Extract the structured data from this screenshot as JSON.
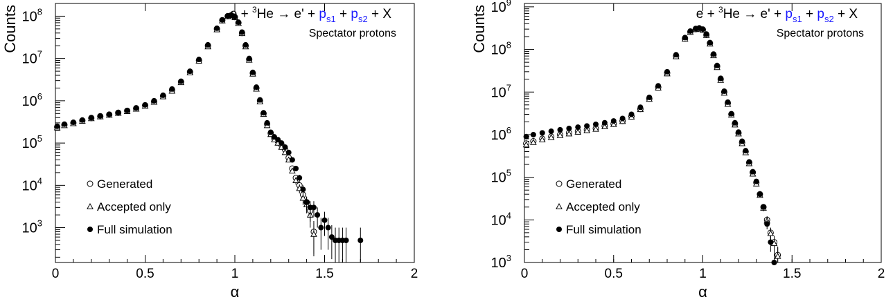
{
  "chart_data": [
    {
      "type": "scatter",
      "log_y": true,
      "xlim": [
        0,
        2
      ],
      "ylim": [
        150,
        200000000
      ],
      "xlabel": "α",
      "ylabel": "Counts",
      "x_ticks": [
        "0",
        "0.5",
        "1",
        "1.5",
        "2"
      ],
      "y_ticks": [
        {
          "base": "10",
          "exp": "3",
          "value": 1000
        },
        {
          "base": "10",
          "exp": "4",
          "value": 10000
        },
        {
          "base": "10",
          "exp": "5",
          "value": 100000
        },
        {
          "base": "10",
          "exp": "6",
          "value": 1000000
        },
        {
          "base": "10",
          "exp": "7",
          "value": 10000000
        },
        {
          "base": "10",
          "exp": "8",
          "value": 100000000
        }
      ],
      "reaction": {
        "pre": "e + ",
        "sup": "3",
        "mid": "He → e' + ",
        "p1": "p",
        "s1": "s1",
        "plus": " + ",
        "p2": "p",
        "s2": "s2",
        "post": " + X"
      },
      "subtitle": "Spectator protons",
      "legend": [
        "Generated",
        "Accepted only",
        "Full simulation"
      ],
      "legend_position": "bottom-left",
      "series": [
        {
          "name": "Generated",
          "marker": "open-circle",
          "x": [
            0.01,
            0.05,
            0.1,
            0.15,
            0.2,
            0.25,
            0.3,
            0.35,
            0.4,
            0.45,
            0.5,
            0.55,
            0.6,
            0.65,
            0.7,
            0.75,
            0.8,
            0.85,
            0.9,
            0.93,
            0.96,
            0.98,
            1.0,
            1.02,
            1.04,
            1.06,
            1.08,
            1.1,
            1.12,
            1.14,
            1.16,
            1.18,
            1.2,
            1.22,
            1.24,
            1.26,
            1.28,
            1.3,
            1.32,
            1.34,
            1.36,
            1.38,
            1.4,
            1.42,
            1.44
          ],
          "y": [
            240000,
            270000,
            300000,
            340000,
            390000,
            430000,
            470000,
            520000,
            580000,
            660000,
            780000,
            960000,
            1300000,
            1800000,
            2800000,
            4800000,
            9000000,
            20000000,
            50000000,
            80000000,
            100000000,
            105000000,
            95000000,
            70000000,
            40000000,
            20000000,
            9500000,
            4500000,
            2000000,
            1000000,
            500000,
            280000,
            170000,
            130000,
            110000,
            90000,
            70000,
            45000,
            25000,
            15000,
            10000,
            6000,
            4000,
            2500,
            800
          ]
        },
        {
          "name": "Accepted only",
          "marker": "open-triangle",
          "x": [
            0.01,
            0.05,
            0.1,
            0.15,
            0.2,
            0.25,
            0.3,
            0.35,
            0.4,
            0.45,
            0.5,
            0.55,
            0.6,
            0.65,
            0.7,
            0.75,
            0.8,
            0.85,
            0.9,
            0.93,
            0.96,
            0.98,
            1.0,
            1.02,
            1.04,
            1.06,
            1.08,
            1.1,
            1.12,
            1.14,
            1.16,
            1.18,
            1.2,
            1.22,
            1.24,
            1.26,
            1.28,
            1.3,
            1.32,
            1.34,
            1.36,
            1.38,
            1.4,
            1.42,
            1.44
          ],
          "y": [
            230000,
            260000,
            290000,
            330000,
            380000,
            420000,
            460000,
            510000,
            560000,
            640000,
            750000,
            930000,
            1250000,
            1700000,
            2700000,
            4600000,
            8700000,
            19000000,
            48000000,
            78000000,
            98000000,
            103000000,
            93000000,
            68000000,
            39000000,
            19000000,
            9200000,
            4300000,
            1900000,
            950000,
            480000,
            260000,
            160000,
            120000,
            100000,
            80000,
            60000,
            40000,
            22000,
            13000,
            8500,
            5000,
            3500,
            2000,
            700
          ]
        },
        {
          "name": "Full simulation",
          "marker": "filled-circle",
          "x": [
            0.01,
            0.05,
            0.1,
            0.15,
            0.2,
            0.25,
            0.3,
            0.35,
            0.4,
            0.45,
            0.5,
            0.55,
            0.6,
            0.65,
            0.7,
            0.75,
            0.8,
            0.85,
            0.9,
            0.93,
            0.96,
            0.98,
            1.0,
            1.02,
            1.04,
            1.06,
            1.08,
            1.1,
            1.12,
            1.14,
            1.16,
            1.18,
            1.2,
            1.22,
            1.24,
            1.26,
            1.28,
            1.3,
            1.32,
            1.34,
            1.36,
            1.38,
            1.4,
            1.42,
            1.44,
            1.46,
            1.48,
            1.5,
            1.52,
            1.54,
            1.56,
            1.58,
            1.6,
            1.62,
            1.7
          ],
          "y": [
            250000,
            280000,
            310000,
            350000,
            400000,
            440000,
            480000,
            530000,
            590000,
            680000,
            800000,
            1000000,
            1350000,
            1900000,
            2900000,
            5000000,
            9500000,
            21000000,
            52000000,
            82000000,
            102000000,
            106000000,
            97000000,
            72000000,
            42000000,
            21000000,
            10000000,
            4700000,
            2100000,
            1050000,
            520000,
            300000,
            180000,
            140000,
            120000,
            100000,
            80000,
            60000,
            40000,
            25000,
            15000,
            8000,
            4000,
            3000,
            3000,
            2000,
            1000,
            1500,
            1000,
            600,
            500,
            500,
            500,
            500,
            500
          ]
        }
      ]
    },
    {
      "type": "scatter",
      "log_y": true,
      "xlim": [
        0,
        2
      ],
      "ylim": [
        1000,
        1200000000
      ],
      "xlabel": "α",
      "ylabel": "Counts",
      "x_ticks": [
        "0",
        "0.5",
        "1",
        "1.5",
        "2"
      ],
      "y_ticks": [
        {
          "base": "10",
          "exp": "3",
          "value": 1000
        },
        {
          "base": "10",
          "exp": "4",
          "value": 10000
        },
        {
          "base": "10",
          "exp": "5",
          "value": 100000
        },
        {
          "base": "10",
          "exp": "6",
          "value": 1000000
        },
        {
          "base": "10",
          "exp": "7",
          "value": 10000000
        },
        {
          "base": "10",
          "exp": "8",
          "value": 100000000
        },
        {
          "base": "10",
          "exp": "9",
          "value": 1000000000
        }
      ],
      "reaction": {
        "pre": "e + ",
        "sup": "3",
        "mid": "He → e' + ",
        "p1": "p",
        "s1": "s1",
        "plus": " + ",
        "p2": "p",
        "s2": "s2",
        "post": " + X"
      },
      "subtitle": "Spectator protons",
      "legend": [
        "Generated",
        "Accepted only",
        "Full simulation"
      ],
      "legend_position": "bottom-left",
      "series": [
        {
          "name": "Generated",
          "marker": "open-circle",
          "x": [
            0.01,
            0.05,
            0.1,
            0.15,
            0.2,
            0.25,
            0.3,
            0.35,
            0.4,
            0.45,
            0.5,
            0.55,
            0.6,
            0.65,
            0.7,
            0.75,
            0.8,
            0.85,
            0.9,
            0.93,
            0.96,
            0.98,
            1.0,
            1.02,
            1.04,
            1.06,
            1.08,
            1.1,
            1.12,
            1.14,
            1.16,
            1.18,
            1.2,
            1.22,
            1.24,
            1.26,
            1.28,
            1.3,
            1.32,
            1.34,
            1.36,
            1.38,
            1.4,
            1.42
          ],
          "y": [
            620000,
            700000,
            800000,
            900000,
            1000000,
            1100000,
            1200000,
            1300000,
            1400000,
            1600000,
            1800000,
            2100000,
            2700000,
            4000000,
            7000000,
            13000000,
            28000000,
            70000000,
            180000000,
            260000000,
            300000000,
            310000000,
            290000000,
            220000000,
            140000000,
            75000000,
            40000000,
            20000000,
            10000000,
            5500000,
            3000000,
            1800000,
            1100000,
            650000,
            400000,
            220000,
            130000,
            75000,
            40000,
            20000,
            10000,
            5000,
            3000,
            1500
          ]
        },
        {
          "name": "Accepted only",
          "marker": "open-triangle",
          "x": [
            0.01,
            0.05,
            0.1,
            0.15,
            0.2,
            0.25,
            0.3,
            0.35,
            0.4,
            0.45,
            0.5,
            0.55,
            0.6,
            0.65,
            0.7,
            0.75,
            0.8,
            0.85,
            0.9,
            0.93,
            0.96,
            0.98,
            1.0,
            1.02,
            1.04,
            1.06,
            1.08,
            1.1,
            1.12,
            1.14,
            1.16,
            1.18,
            1.2,
            1.22,
            1.24,
            1.26,
            1.28,
            1.3,
            1.32,
            1.34,
            1.36,
            1.38,
            1.4,
            1.42,
            1.44
          ],
          "y": [
            580000,
            660000,
            760000,
            860000,
            960000,
            1050000,
            1150000,
            1250000,
            1350000,
            1550000,
            1750000,
            2050000,
            2600000,
            3900000,
            6800000,
            12500000,
            27000000,
            68000000,
            175000000,
            255000000,
            295000000,
            305000000,
            285000000,
            215000000,
            135000000,
            72000000,
            38000000,
            19000000,
            9500000,
            5200000,
            2900000,
            1700000,
            1050000,
            620000,
            380000,
            210000,
            120000,
            70000,
            38000,
            19000,
            9500,
            4800,
            2800,
            1400,
            600
          ]
        },
        {
          "name": "Full simulation",
          "marker": "filled-circle",
          "x": [
            0.01,
            0.05,
            0.1,
            0.15,
            0.2,
            0.25,
            0.3,
            0.35,
            0.4,
            0.45,
            0.5,
            0.55,
            0.6,
            0.65,
            0.7,
            0.75,
            0.8,
            0.85,
            0.9,
            0.93,
            0.96,
            0.98,
            1.0,
            1.02,
            1.04,
            1.06,
            1.08,
            1.1,
            1.12,
            1.14,
            1.16,
            1.18,
            1.2,
            1.22,
            1.24,
            1.26,
            1.28,
            1.3,
            1.32,
            1.34,
            1.36,
            1.38,
            1.4
          ],
          "y": [
            900000,
            1000000,
            1100000,
            1200000,
            1300000,
            1400000,
            1500000,
            1600000,
            1750000,
            1900000,
            2100000,
            2400000,
            3000000,
            4400000,
            7500000,
            14000000,
            30000000,
            75000000,
            190000000,
            270000000,
            310000000,
            320000000,
            300000000,
            230000000,
            145000000,
            78000000,
            42000000,
            21000000,
            10500000,
            5800000,
            3100000,
            1900000,
            1150000,
            700000,
            420000,
            230000,
            135000,
            80000,
            40000,
            20000,
            8000,
            3000,
            1000
          ]
        }
      ]
    }
  ]
}
